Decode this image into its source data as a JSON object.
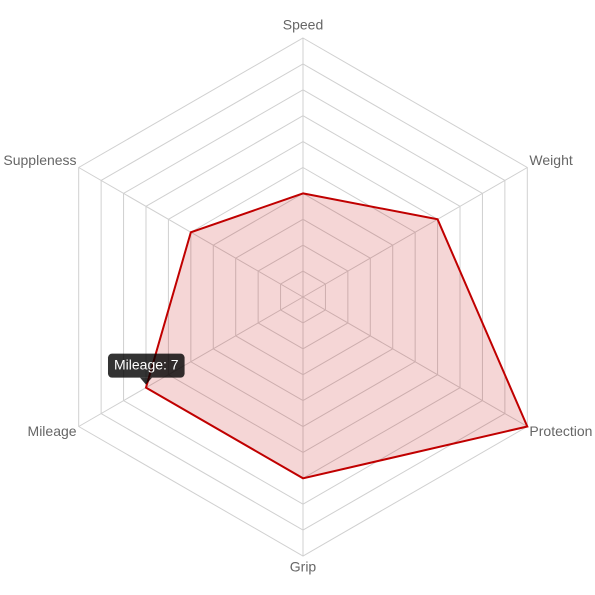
{
  "chart_data": {
    "type": "radar",
    "categories": [
      "Speed",
      "Weight",
      "Protection",
      "Grip",
      "Mileage",
      "Suppleness"
    ],
    "values": [
      4,
      6,
      10,
      7,
      7,
      5
    ],
    "color": "#c00000",
    "rlim": [
      0,
      10
    ],
    "rticks": [
      1,
      2,
      3,
      4,
      5,
      6,
      7,
      8,
      9,
      10
    ],
    "grid": true,
    "tooltip": "Mileage: 7"
  }
}
